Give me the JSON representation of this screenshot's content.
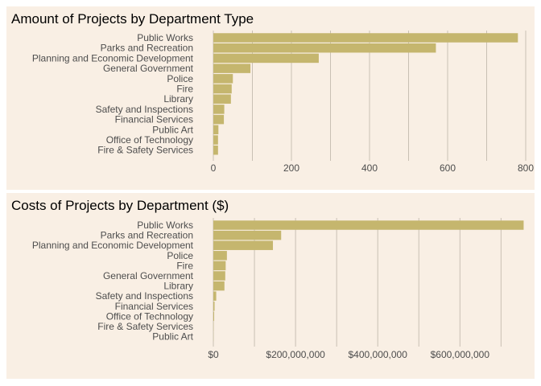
{
  "chart_data": [
    {
      "type": "bar",
      "orientation": "horizontal",
      "title": "Amount of Projects by Department Type",
      "categories": [
        "Public Works",
        "Parks and Recreation",
        "Planning and Economic Development",
        "General Government",
        "Police",
        "Fire",
        "Library",
        "Safety and Inspections",
        "Financial Services",
        "Public Art",
        "Office of Technology",
        "Fire & Safety Services"
      ],
      "values": [
        780,
        570,
        270,
        95,
        50,
        47,
        45,
        28,
        27,
        13,
        12,
        12
      ],
      "xlim": [
        0,
        800
      ],
      "xticks": [
        0,
        200,
        400,
        600,
        800
      ],
      "xtick_labels": [
        "0",
        "200",
        "400",
        "600",
        "800"
      ],
      "grid": "vertical",
      "bar_color": "#c5b66e"
    },
    {
      "type": "bar",
      "orientation": "horizontal",
      "title": "Costs of Projects by Department ($)",
      "categories": [
        "Public Works",
        "Parks and Recreation",
        "Planning and Economic Development",
        "Police",
        "Fire",
        "General Government",
        "Library",
        "Safety and Inspections",
        "Financial Services",
        "Office of Technology",
        "Fire & Safety Services",
        "Public Art"
      ],
      "values": [
        755000000,
        165000000,
        145000000,
        33000000,
        30000000,
        29000000,
        27000000,
        7000000,
        3000000,
        2000000,
        500000,
        300000
      ],
      "xlim": [
        0,
        760000000
      ],
      "xticks": [
        0,
        200000000,
        400000000,
        600000000
      ],
      "xtick_labels": [
        "$0",
        "$200,000,000",
        "$400,000,000",
        "$600,000,000"
      ],
      "grid": "vertical",
      "bar_color": "#c5b66e"
    }
  ]
}
